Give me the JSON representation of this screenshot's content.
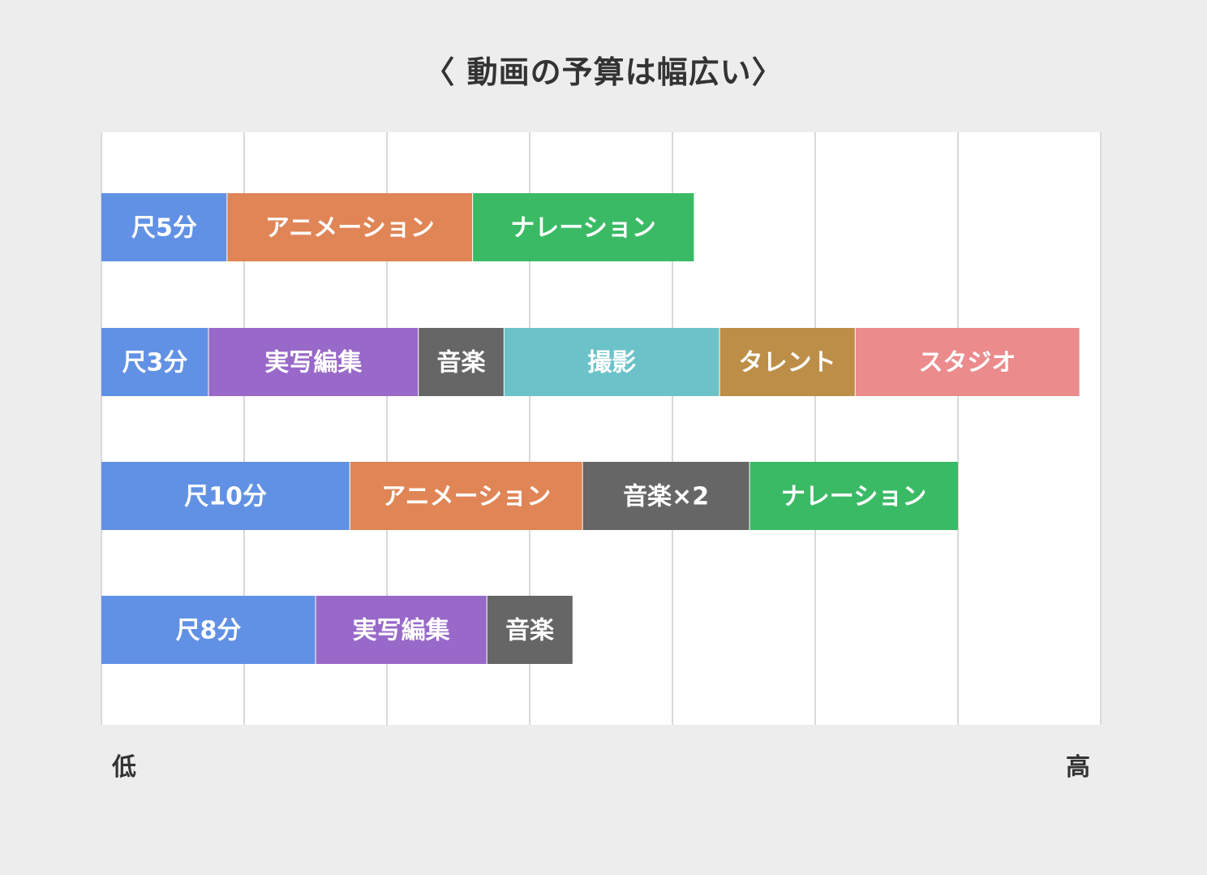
{
  "chart_data": {
    "type": "bar",
    "orientation": "horizontal",
    "stacked": true,
    "title": "〈 動画の予算は幅広い〉",
    "x_axis": {
      "min_label": "低",
      "max_label": "高",
      "range": [
        0,
        7
      ],
      "gridlines": 7
    },
    "grid": true,
    "colors": {
      "尺": "#6191e4",
      "アニメーション": "#e08556",
      "ナレーション": "#3bba66",
      "実写編集": "#9869c8",
      "音楽": "#666666",
      "撮影": "#6bc3c9",
      "タレント": "#bc8e47",
      "スタジオ": "#eb8b8c",
      "plot_bg": "#ffffff",
      "grid": "#d9d9d9"
    },
    "bars": [
      {
        "segments": [
          {
            "label": "尺5分",
            "kind": "尺",
            "value": 0.88
          },
          {
            "label": "アニメーション",
            "kind": "アニメーション",
            "value": 1.72
          },
          {
            "label": "ナレーション",
            "kind": "ナレーション",
            "value": 1.55
          }
        ]
      },
      {
        "segments": [
          {
            "label": "尺3分",
            "kind": "尺",
            "value": 0.75
          },
          {
            "label": "実写編集",
            "kind": "実写編集",
            "value": 1.47
          },
          {
            "label": "音楽",
            "kind": "音楽",
            "value": 0.6
          },
          {
            "label": "撮影",
            "kind": "撮影",
            "value": 1.51
          },
          {
            "label": "タレント",
            "kind": "タレント",
            "value": 0.95
          },
          {
            "label": "スタジオ",
            "kind": "スタジオ",
            "value": 1.57
          }
        ]
      },
      {
        "segments": [
          {
            "label": "尺10分",
            "kind": "尺",
            "value": 1.74
          },
          {
            "label": "アニメーション",
            "kind": "アニメーション",
            "value": 1.63
          },
          {
            "label": "音楽×2",
            "kind": "音楽",
            "value": 1.17
          },
          {
            "label": "ナレーション",
            "kind": "ナレーション",
            "value": 1.46
          }
        ]
      },
      {
        "segments": [
          {
            "label": "尺8分",
            "kind": "尺",
            "value": 1.5
          },
          {
            "label": "実写編集",
            "kind": "実写編集",
            "value": 1.2
          },
          {
            "label": "音楽",
            "kind": "音楽",
            "value": 0.6
          }
        ]
      }
    ]
  }
}
